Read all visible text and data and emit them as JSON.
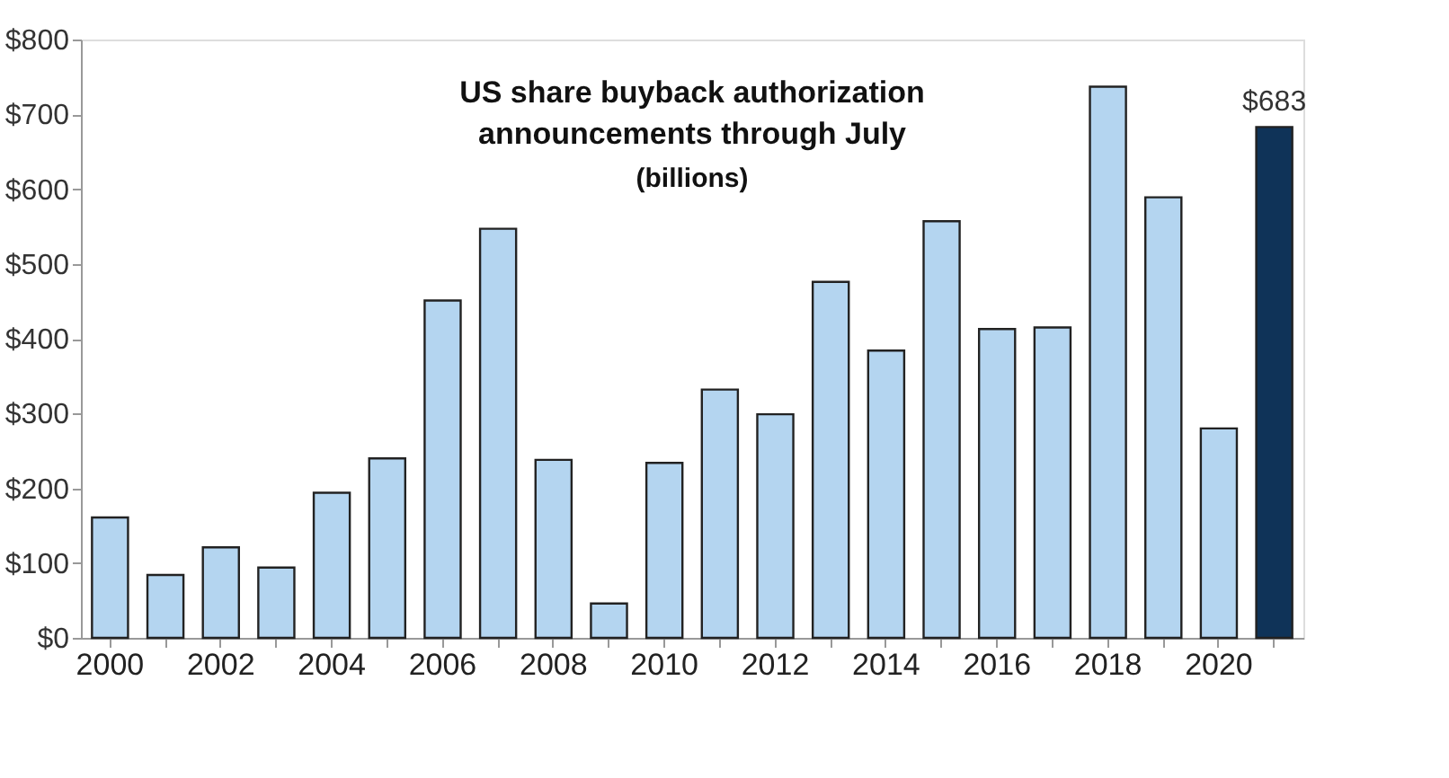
{
  "chart_data": {
    "type": "bar",
    "title": "US share buyback authorization announcements through July",
    "subtitle": "(billions)",
    "categories": [
      "2000",
      null,
      "2002",
      null,
      "2004",
      null,
      "2006",
      null,
      "2008",
      null,
      "2010",
      null,
      "2012",
      null,
      "2014",
      null,
      "2016",
      null,
      "2018",
      null,
      "2020",
      null
    ],
    "values": [
      161,
      84,
      121,
      94,
      194,
      240,
      451,
      547,
      238,
      46,
      234,
      332,
      299,
      476,
      384,
      557,
      413,
      415,
      737,
      589,
      280,
      683
    ],
    "colors": [
      "#b4d5f0",
      "#b4d5f0",
      "#b4d5f0",
      "#b4d5f0",
      "#b4d5f0",
      "#b4d5f0",
      "#b4d5f0",
      "#b4d5f0",
      "#b4d5f0",
      "#b4d5f0",
      "#b4d5f0",
      "#b4d5f0",
      "#b4d5f0",
      "#b4d5f0",
      "#b4d5f0",
      "#b4d5f0",
      "#b4d5f0",
      "#b4d5f0",
      "#b4d5f0",
      "#b4d5f0",
      "#b4d5f0",
      "#0f3358"
    ],
    "value_labels": [
      null,
      null,
      null,
      null,
      null,
      null,
      null,
      null,
      null,
      null,
      null,
      null,
      null,
      null,
      null,
      null,
      null,
      null,
      null,
      null,
      null,
      "$683"
    ],
    "ylim": [
      0,
      800
    ],
    "yticks": [
      {
        "value": 0,
        "label": "$0"
      },
      {
        "value": 100,
        "label": "$100"
      },
      {
        "value": 200,
        "label": "$200"
      },
      {
        "value": 300,
        "label": "$300"
      },
      {
        "value": 400,
        "label": "$400"
      },
      {
        "value": 500,
        "label": "$500"
      },
      {
        "value": 600,
        "label": "$600"
      },
      {
        "value": 700,
        "label": "$700"
      },
      {
        "value": 800,
        "label": "$800"
      }
    ],
    "grid": false
  }
}
